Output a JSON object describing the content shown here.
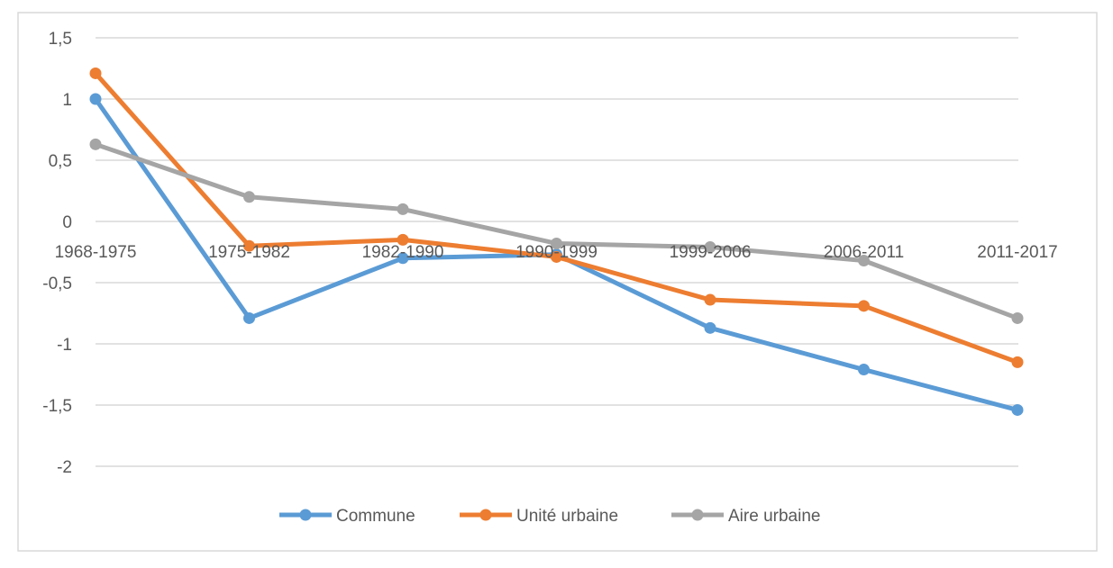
{
  "chart_data": {
    "type": "line",
    "title": "",
    "xlabel": "",
    "ylabel": "",
    "categories": [
      "1968-1975",
      "1975-1982",
      "1982-1990",
      "1990-1999",
      "1999-2006",
      "2006-2011",
      "2011-2017"
    ],
    "ylim": [
      -2,
      1.5
    ],
    "yticks": [
      1.5,
      1,
      0.5,
      0,
      -0.5,
      -1,
      -1.5,
      -2
    ],
    "ytick_labels": [
      "1,5",
      "1",
      "0,5",
      "0",
      "-0,5",
      "-1",
      "-1,5",
      "-2"
    ],
    "grid": true,
    "legend_position": "bottom",
    "series": [
      {
        "name": "Commune",
        "color": "#5B9BD5",
        "values": [
          1.0,
          -0.79,
          -0.3,
          -0.27,
          -0.87,
          -1.21,
          -1.54
        ]
      },
      {
        "name": "Unité urbaine",
        "color": "#ED7D31",
        "values": [
          1.21,
          -0.2,
          -0.15,
          -0.29,
          -0.64,
          -0.69,
          -1.15
        ]
      },
      {
        "name": "Aire urbaine",
        "color": "#A5A5A5",
        "values": [
          0.63,
          0.2,
          0.1,
          -0.18,
          -0.21,
          -0.32,
          -0.79
        ]
      }
    ]
  }
}
